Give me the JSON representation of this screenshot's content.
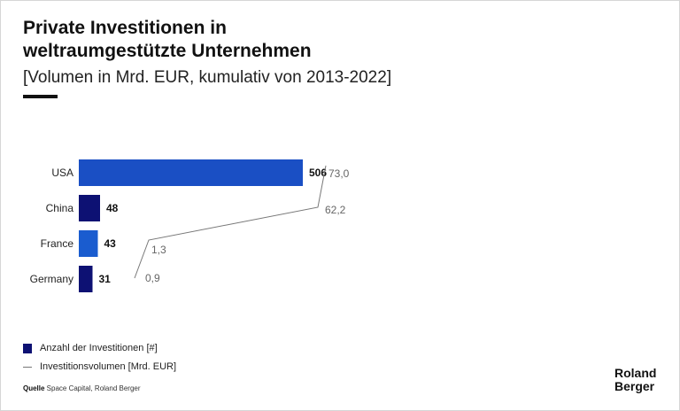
{
  "title_line1": "Private Investitionen in",
  "title_line2": "weltraumgestützte Unternehmen",
  "subtitle": "[Volumen in Mrd. EUR, kumulativ von 2013-2022]",
  "chart_data": {
    "type": "bar",
    "orientation": "horizontal",
    "categories": [
      "USA",
      "China",
      "France",
      "Germany"
    ],
    "series": [
      {
        "name": "Anzahl der Investitionen [#]",
        "kind": "bar",
        "values": [
          506,
          48,
          43,
          31
        ],
        "labels": [
          "506",
          "48",
          "43",
          "31"
        ],
        "colors": [
          "#1a4fc4",
          "#0d1173",
          "#1a5ccf",
          "#0d1173"
        ]
      },
      {
        "name": "Investitionsvolumen [Mrd. EUR]",
        "kind": "line",
        "values": [
          73.0,
          62.2,
          1.3,
          0.9
        ],
        "labels": [
          "73,0",
          "62,2",
          "1,3",
          "0,9"
        ],
        "color": "#777777"
      }
    ],
    "xlim": [
      0,
      506
    ]
  },
  "legend": {
    "bar_label": "Anzahl der Investitionen [#]",
    "line_label": "Investitionsvolumen [Mrd. EUR]"
  },
  "source": {
    "prefix": "Quelle",
    "text": " Space Capital, Roland Berger"
  },
  "logo": {
    "line1": "Roland",
    "line2": "Berger"
  }
}
